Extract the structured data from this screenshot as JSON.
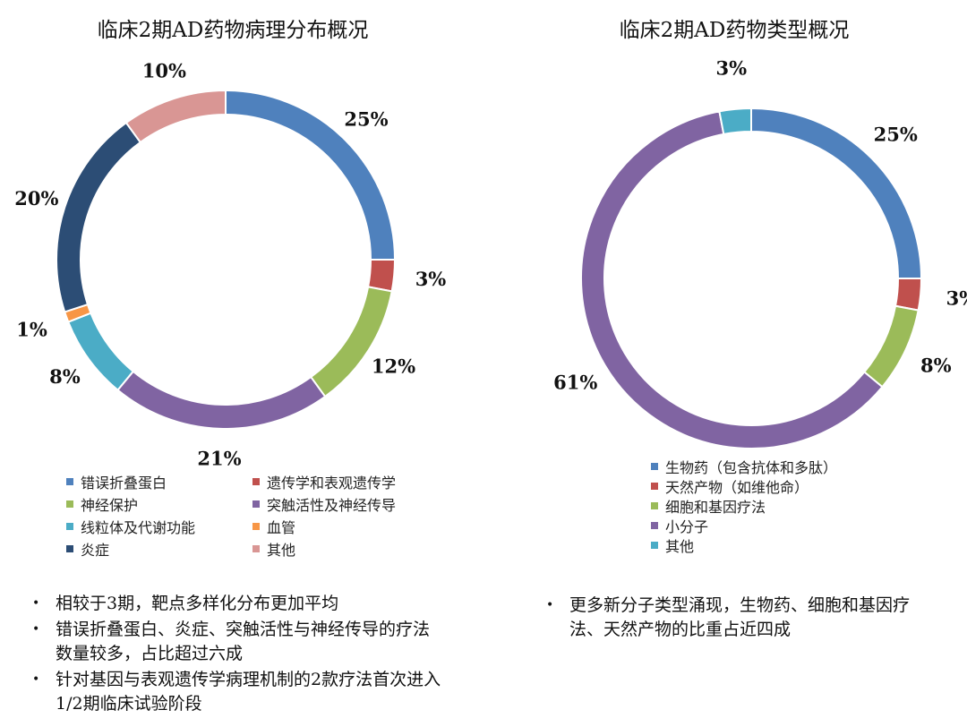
{
  "chart_data": [
    {
      "type": "pie",
      "title": "临床2期AD药物病理分布概况",
      "categories": [
        "错误折叠蛋白",
        "遗传学和表观遗传学",
        "神经保护",
        "突触活性及神经传导",
        "线粒体及代谢功能",
        "血管",
        "炎症",
        "其他"
      ],
      "values": [
        25,
        3,
        12,
        21,
        8,
        1,
        20,
        10
      ],
      "value_labels": [
        "25%",
        "3%",
        "12%",
        "21%",
        "8%",
        "1%",
        "20%",
        "10%"
      ],
      "colors": [
        "#4f81bd",
        "#c0504d",
        "#9bbb59",
        "#8064a2",
        "#4bacc6",
        "#f79646",
        "#2c4d75",
        "#d99694"
      ],
      "legend": "bottom",
      "style": "donut"
    },
    {
      "type": "pie",
      "title": "临床2期AD药物类型概况",
      "categories": [
        "生物药（包含抗体和多肽）",
        "天然产物（如维他命）",
        "细胞和基因疗法",
        "小分子",
        "其他"
      ],
      "values": [
        25,
        3,
        8,
        61,
        3
      ],
      "value_labels": [
        "25%",
        "3%",
        "8%",
        "61%",
        "3%"
      ],
      "colors": [
        "#4f81bd",
        "#c0504d",
        "#9bbb59",
        "#8064a2",
        "#4bacc6"
      ],
      "legend": "bottom",
      "style": "donut"
    }
  ],
  "notes": {
    "left": [
      "相较于3期，靶点多样化分布更加平均",
      "错误折叠蛋白、炎症、突触活性与神经传导的疗法数量较多，占比超过六成",
      "针对基因与表观遗传学病理机制的2款疗法首次进入1/2期临床试验阶段"
    ],
    "right": [
      "更多新分子类型涌现，生物药、细胞和基因疗法、天然产物的比重占近四成"
    ]
  },
  "bullet_symbol": "•"
}
